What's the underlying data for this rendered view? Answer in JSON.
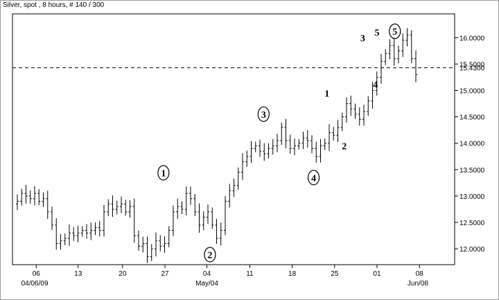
{
  "chart_data": {
    "type": "ohlc",
    "title": "Silver, spot , 8 hours, # 140 / 300",
    "ylim": [
      11.7,
      16.45
    ],
    "xlim": [
      0,
      78
    ],
    "grid": false,
    "y_ticks": [
      "16.0000",
      "15.5000",
      "15.0000",
      "14.5000",
      "14.0000",
      "13.5000",
      "13.0000",
      "12.5000",
      "12.0000"
    ],
    "x_ticks": [
      {
        "label": "06",
        "x": 3.7
      },
      {
        "label": "13",
        "x": 11.9
      },
      {
        "label": "20",
        "x": 20.6
      },
      {
        "label": "27",
        "x": 28.9
      },
      {
        "label": "04",
        "x": 37.1
      },
      {
        "label": "11",
        "x": 45.5
      },
      {
        "label": "18",
        "x": 53.8
      },
      {
        "label": "25",
        "x": 62.1
      },
      {
        "label": "01",
        "x": 70.4
      },
      {
        "label": "08",
        "x": 78.7
      }
    ],
    "x_date_labels": [
      {
        "label": "04/06/09",
        "x": 3.4
      },
      {
        "label": "May/04",
        "x": 37.1
      },
      {
        "label": "Jun/08",
        "x": 78.4
      }
    ],
    "reference_line": {
      "value": 15.43,
      "label": "15.4300",
      "style": "dashed"
    },
    "closes": [
      12.9,
      13.05,
      13.0,
      12.95,
      13.05,
      12.9,
      12.95,
      12.7,
      12.45,
      12.1,
      12.15,
      12.2,
      12.3,
      12.25,
      12.3,
      12.35,
      12.3,
      12.35,
      12.4,
      12.35,
      12.7,
      12.85,
      12.75,
      12.8,
      12.85,
      12.7,
      12.8,
      12.25,
      12.05,
      12.1,
      11.85,
      12.0,
      12.15,
      12.05,
      12.1,
      12.35,
      12.7,
      12.8,
      12.75,
      13.05,
      12.95,
      12.7,
      12.45,
      12.6,
      12.7,
      12.45,
      12.2,
      12.35,
      12.9,
      13.1,
      13.2,
      13.45,
      13.65,
      13.75,
      13.9,
      13.95,
      13.85,
      13.8,
      13.9,
      13.95,
      14.05,
      14.3,
      14.05,
      13.9,
      13.95,
      14.0,
      14.1,
      14.05,
      13.9,
      13.75,
      13.95,
      14.0,
      14.2,
      14.15,
      14.3,
      14.5,
      14.75,
      14.65,
      14.55,
      14.45,
      14.6,
      14.8,
      15.0,
      15.25,
      15.55,
      15.7,
      15.85,
      15.6,
      15.75,
      15.95,
      16.05,
      15.6,
      15.3
    ],
    "wave_labels": [
      {
        "text": "1",
        "x": 28.6,
        "y": 13.44,
        "circled": true
      },
      {
        "text": "2",
        "x": 37.7,
        "y": 11.89,
        "circled": true
      },
      {
        "text": "3",
        "x": 48.2,
        "y": 14.55,
        "circled": true
      },
      {
        "text": "4",
        "x": 58.0,
        "y": 13.35,
        "circled": true
      },
      {
        "text": "1",
        "x": 60.6,
        "y": 14.95,
        "circled": false
      },
      {
        "text": "2",
        "x": 64.0,
        "y": 13.95,
        "circled": false
      },
      {
        "text": "3",
        "x": 67.6,
        "y": 16.0,
        "circled": false
      },
      {
        "text": "5",
        "x": 70.4,
        "y": 16.1,
        "circled": false
      },
      {
        "text": "4",
        "x": 70.1,
        "y": 15.12,
        "circled": false
      },
      {
        "text": "5",
        "x": 73.9,
        "y": 16.12,
        "circled": true
      }
    ]
  }
}
